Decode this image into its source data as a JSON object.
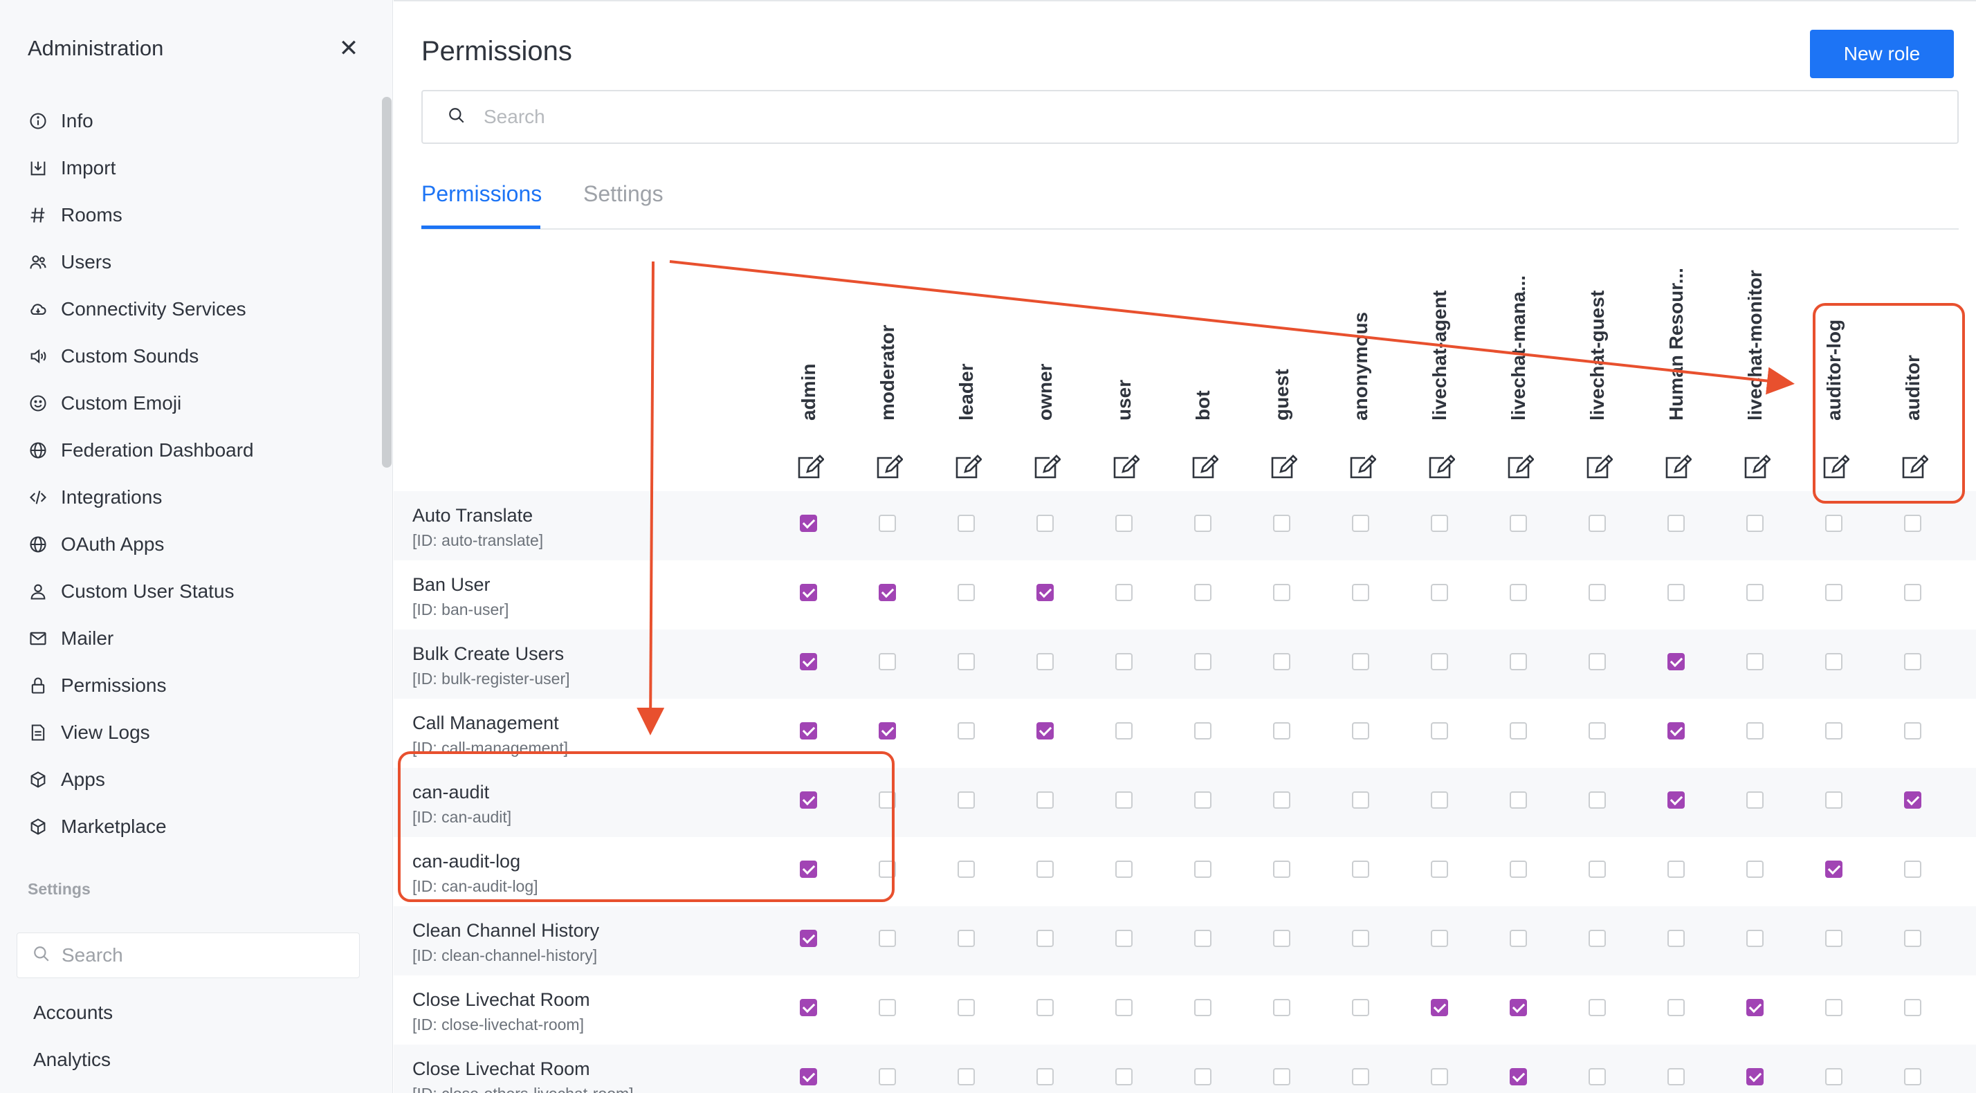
{
  "sidebar": {
    "title": "Administration",
    "close_icon": "close-icon",
    "items": [
      {
        "label": "Info",
        "icon": "info-icon"
      },
      {
        "label": "Import",
        "icon": "import-icon"
      },
      {
        "label": "Rooms",
        "icon": "hash-icon"
      },
      {
        "label": "Users",
        "icon": "users-icon"
      },
      {
        "label": "Connectivity Services",
        "icon": "cloud-icon"
      },
      {
        "label": "Custom Sounds",
        "icon": "sound-icon"
      },
      {
        "label": "Custom Emoji",
        "icon": "emoji-icon"
      },
      {
        "label": "Federation Dashboard",
        "icon": "globe-icon"
      },
      {
        "label": "Integrations",
        "icon": "code-icon"
      },
      {
        "label": "OAuth Apps",
        "icon": "globe-icon"
      },
      {
        "label": "Custom User Status",
        "icon": "user-icon"
      },
      {
        "label": "Mailer",
        "icon": "mail-icon"
      },
      {
        "label": "Permissions",
        "icon": "lock-icon"
      },
      {
        "label": "View Logs",
        "icon": "file-icon"
      },
      {
        "label": "Apps",
        "icon": "cube-icon"
      },
      {
        "label": "Marketplace",
        "icon": "cube-icon"
      }
    ],
    "settings_heading": "Settings",
    "search_placeholder": "Search",
    "settings_items": [
      "Accounts",
      "Analytics"
    ]
  },
  "main": {
    "title": "Permissions",
    "new_role_label": "New role",
    "search_placeholder": "Search",
    "tabs": [
      {
        "label": "Permissions",
        "active": true
      },
      {
        "label": "Settings",
        "active": false
      }
    ]
  },
  "roles": [
    "admin",
    "moderator",
    "leader",
    "owner",
    "user",
    "bot",
    "guest",
    "anonymous",
    "livechat-agent",
    "livechat-mana...",
    "livechat-guest",
    "Human Resour...",
    "livechat-monitor",
    "auditor-log",
    "auditor"
  ],
  "permissions": [
    {
      "name": "Auto Translate",
      "id": "[ID: auto-translate]",
      "granted": [
        1,
        0,
        0,
        0,
        0,
        0,
        0,
        0,
        0,
        0,
        0,
        0,
        0,
        0,
        0
      ]
    },
    {
      "name": "Ban User",
      "id": "[ID: ban-user]",
      "granted": [
        1,
        1,
        0,
        1,
        0,
        0,
        0,
        0,
        0,
        0,
        0,
        0,
        0,
        0,
        0
      ]
    },
    {
      "name": "Bulk Create Users",
      "id": "[ID: bulk-register-user]",
      "granted": [
        1,
        0,
        0,
        0,
        0,
        0,
        0,
        0,
        0,
        0,
        0,
        1,
        0,
        0,
        0
      ]
    },
    {
      "name": "Call Management",
      "id": "[ID: call-management]",
      "granted": [
        1,
        1,
        0,
        1,
        0,
        0,
        0,
        0,
        0,
        0,
        0,
        1,
        0,
        0,
        0
      ]
    },
    {
      "name": "can-audit",
      "id": "[ID: can-audit]",
      "granted": [
        1,
        0,
        0,
        0,
        0,
        0,
        0,
        0,
        0,
        0,
        0,
        1,
        0,
        0,
        1
      ]
    },
    {
      "name": "can-audit-log",
      "id": "[ID: can-audit-log]",
      "granted": [
        1,
        0,
        0,
        0,
        0,
        0,
        0,
        0,
        0,
        0,
        0,
        0,
        0,
        1,
        0
      ]
    },
    {
      "name": "Clean Channel History",
      "id": "[ID: clean-channel-history]",
      "granted": [
        1,
        0,
        0,
        0,
        0,
        0,
        0,
        0,
        0,
        0,
        0,
        0,
        0,
        0,
        0
      ]
    },
    {
      "name": "Close Livechat Room",
      "id": "[ID: close-livechat-room]",
      "granted": [
        1,
        0,
        0,
        0,
        0,
        0,
        0,
        0,
        1,
        1,
        0,
        0,
        1,
        0,
        0
      ]
    },
    {
      "name": "Close Livechat Room",
      "id": "[ID: close-others-livechat-room]",
      "granted": [
        1,
        0,
        0,
        0,
        0,
        0,
        0,
        0,
        0,
        1,
        0,
        0,
        1,
        0,
        0
      ]
    }
  ],
  "colors": {
    "accent": "#1d74f5",
    "checked": "#a144b4",
    "annotation": "#e8502e"
  }
}
